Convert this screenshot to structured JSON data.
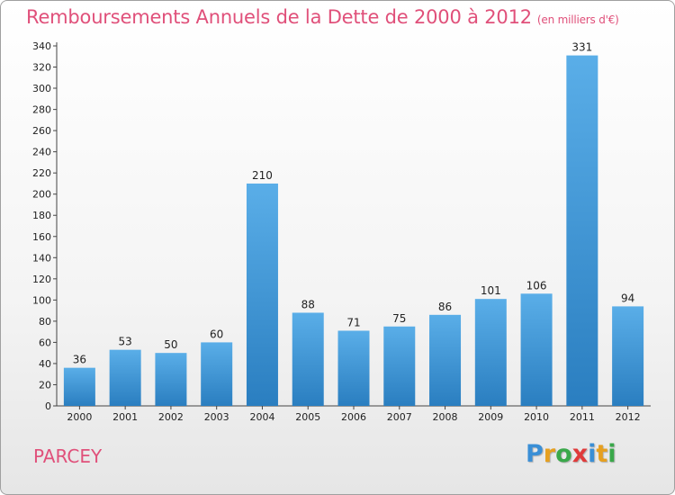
{
  "page": {
    "title": "Remboursements Annuels de la Dette de 2000 à 2012",
    "subtitle": "(en milliers d'€)",
    "commune": "PARCEY",
    "logo": {
      "letters": [
        "P",
        "r",
        "o",
        "x",
        "i",
        "t",
        "i"
      ],
      "colors": [
        "#3a8fd6",
        "#e6a020",
        "#3aa84a",
        "#e03a3a",
        "#3a8fd6",
        "#e6a020",
        "#3aa84a"
      ]
    }
  },
  "chart_data": {
    "type": "bar",
    "title": "Remboursements Annuels de la Dette de 2000 à 2012",
    "subtitle": "(en milliers d'€)",
    "categories": [
      "2000",
      "2001",
      "2002",
      "2003",
      "2004",
      "2005",
      "2006",
      "2007",
      "2008",
      "2009",
      "2010",
      "2011",
      "2012"
    ],
    "values": [
      36,
      53,
      50,
      60,
      210,
      88,
      71,
      75,
      86,
      101,
      106,
      331,
      94
    ],
    "ylim": [
      0,
      340
    ],
    "yticks": [
      0,
      20,
      40,
      60,
      80,
      100,
      120,
      140,
      160,
      180,
      200,
      220,
      240,
      260,
      280,
      300,
      320,
      340
    ],
    "grid": false,
    "bar_color_top": "#5aaee8",
    "bar_color_bottom": "#2a7ec0"
  }
}
